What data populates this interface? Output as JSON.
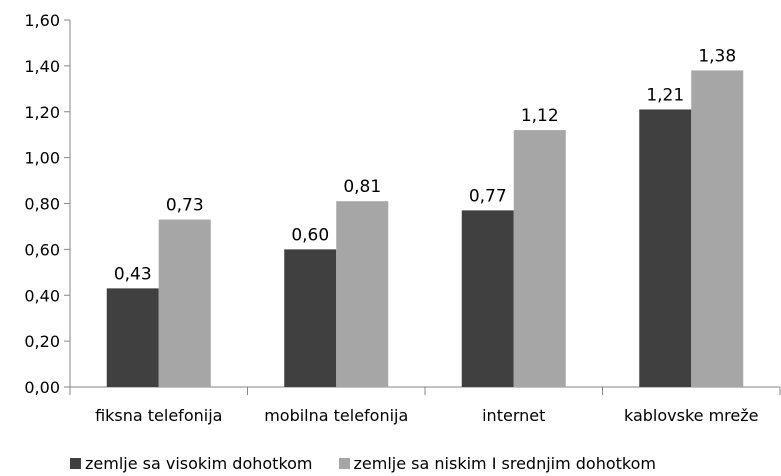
{
  "chart_data": {
    "type": "bar",
    "title": "",
    "xlabel": "",
    "ylabel": "",
    "categories": [
      "fiksna telefonija",
      "mobilna telefonija",
      "internet",
      "kablovske mreže"
    ],
    "series": [
      {
        "name": "zemlje sa visokim dohotkom",
        "values": [
          0.43,
          0.6,
          0.77,
          1.21
        ],
        "labels": [
          "0,43",
          "0,60",
          "0,77",
          "1,21"
        ],
        "color": "#404040"
      },
      {
        "name": "zemlje sa niskim I srednjim dohotkom",
        "values": [
          0.73,
          0.81,
          1.12,
          1.38
        ],
        "labels": [
          "0,73",
          "0,81",
          "1,12",
          "1,38"
        ],
        "color": "#a6a6a6"
      }
    ],
    "ylim": [
      0,
      1.6
    ],
    "yticks": [
      0,
      0.2,
      0.4,
      0.6,
      0.8,
      1.0,
      1.2,
      1.4,
      1.6
    ],
    "ytick_labels": [
      "0,00",
      "0,20",
      "0,40",
      "0,60",
      "0,80",
      "1,00",
      "1,20",
      "1,40",
      "1,60"
    ],
    "grid": false,
    "legend_position": "bottom"
  }
}
